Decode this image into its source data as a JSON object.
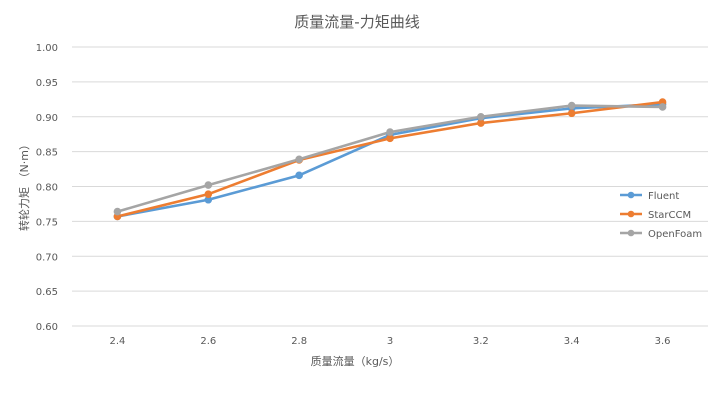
{
  "chart_data": {
    "type": "line",
    "title": "质量流量-力矩曲线",
    "xlabel": "质量流量（kg/s）",
    "ylabel": "转轮力矩 （N·m）",
    "x": [
      2.4,
      2.6,
      2.8,
      3.0,
      3.2,
      3.4,
      3.6
    ],
    "x_tick_labels": [
      "2.4",
      "2.6",
      "2.8",
      "3",
      "3.2",
      "3.4",
      "3.6"
    ],
    "ylim": [
      0.6,
      1.0
    ],
    "y_ticks": [
      "0.60",
      "0.65",
      "0.70",
      "0.75",
      "0.80",
      "0.85",
      "0.90",
      "0.95",
      "1.00"
    ],
    "grid": true,
    "legend_position": "right",
    "series": [
      {
        "name": "Fluent",
        "color": "#5b9bd5",
        "values": [
          0.757,
          0.781,
          0.816,
          0.874,
          0.898,
          0.912,
          0.918
        ]
      },
      {
        "name": "StarCCM",
        "color": "#ed7d31",
        "values": [
          0.757,
          0.789,
          0.838,
          0.869,
          0.891,
          0.905,
          0.921
        ]
      },
      {
        "name": "OpenFoam",
        "color": "#a5a5a5",
        "values": [
          0.764,
          0.802,
          0.839,
          0.878,
          0.9,
          0.916,
          0.914
        ]
      }
    ]
  }
}
